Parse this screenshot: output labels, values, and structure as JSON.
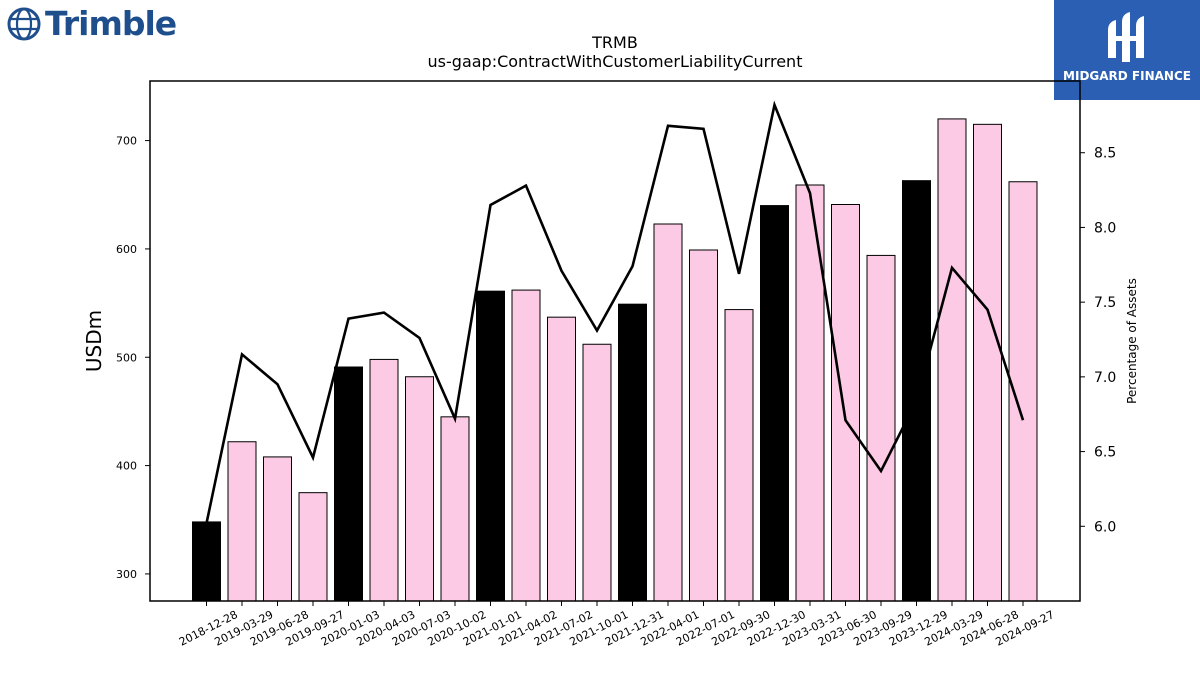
{
  "logos": {
    "left_text": "Trimble",
    "right_text": "MIDGARD FINANCE",
    "right_bg": "#2b5fb4"
  },
  "chart_data": {
    "type": "bar",
    "title": "TRMB",
    "subtitle": "us-gaap:ContractWithCustomerLiabilityCurrent",
    "ylabel": "USDm",
    "y2label": "Percentage of Assets",
    "categories": [
      "2018-12-28",
      "2019-03-29",
      "2019-06-28",
      "2019-09-27",
      "2020-01-03",
      "2020-04-03",
      "2020-07-03",
      "2020-10-02",
      "2021-01-01",
      "2021-04-02",
      "2021-07-02",
      "2021-10-01",
      "2021-12-31",
      "2022-04-01",
      "2022-07-01",
      "2022-09-30",
      "2022-12-30",
      "2023-03-31",
      "2023-06-30",
      "2023-09-29",
      "2023-12-29",
      "2024-03-29",
      "2024-06-28",
      "2024-09-27"
    ],
    "series": [
      {
        "values": [
          348,
          422,
          408,
          375,
          491,
          498,
          482,
          445,
          561,
          562,
          537,
          512,
          549,
          623,
          599,
          544,
          640,
          659,
          641,
          594,
          663,
          720,
          715,
          662
        ],
        "axis": "left"
      },
      {
        "values": [
          6.02,
          7.15,
          6.95,
          6.46,
          7.39,
          7.43,
          7.26,
          6.72,
          8.15,
          8.28,
          7.71,
          7.31,
          7.74,
          8.68,
          8.66,
          7.69,
          8.82,
          8.23,
          6.71,
          6.37,
          6.84,
          7.73,
          7.45,
          6.71
        ],
        "axis": "right",
        "kind": "line"
      }
    ],
    "bar_colors": {
      "fiscal_year_end": "#000000",
      "quarter": "#fccae4"
    },
    "ylim": [
      275,
      755
    ],
    "y_ticks": [
      300,
      400,
      500,
      600,
      700
    ],
    "y2lim": [
      5.5,
      8.98
    ],
    "y2_ticks": [
      "6.0",
      "6.5",
      "7.0",
      "7.5",
      "8.0",
      "8.5"
    ],
    "grid": false,
    "legend": "none"
  }
}
